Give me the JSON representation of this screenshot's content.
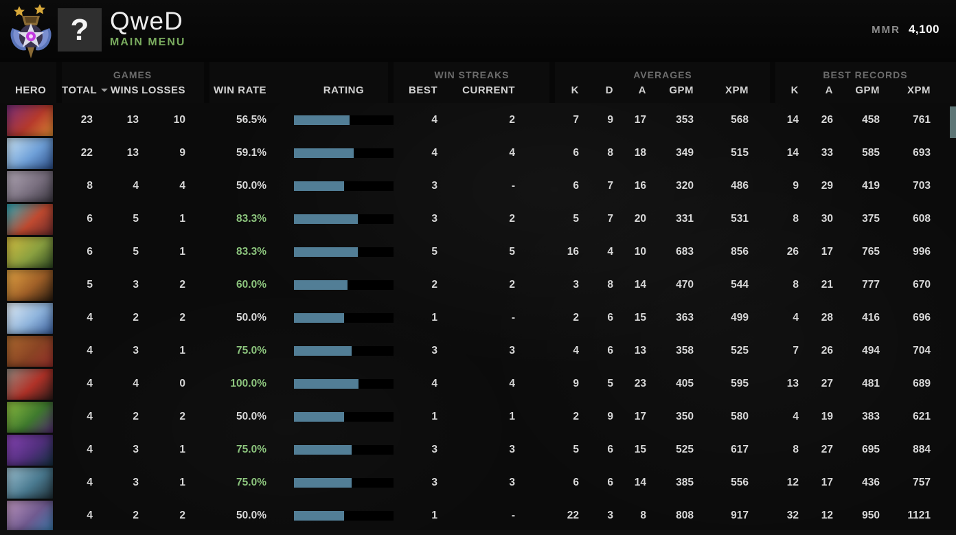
{
  "topbar": {
    "player_name": "QweD",
    "nav_label": "MAIN MENU",
    "nav_color": "#79ab5e",
    "avatar_glyph": "?",
    "mmr_label": "MMR",
    "mmr_value": "4,100",
    "rank_medal_icon": "immortal-medal-two-stars"
  },
  "table": {
    "groups": {
      "games": "GAMES",
      "win_streaks": "WIN STREAKS",
      "averages": "AVERAGES",
      "best_records": "BEST RECORDS"
    },
    "columns": {
      "hero": "HERO",
      "total": "TOTAL",
      "wins": "WINS",
      "losses": "LOSSES",
      "win_rate": "WIN RATE",
      "rating": "RATING",
      "best": "BEST",
      "current": "CURRENT",
      "avg_k": "K",
      "avg_d": "D",
      "avg_a": "A",
      "avg_gpm": "GPM",
      "avg_xpm": "XPM",
      "rec_k": "K",
      "rec_a": "A",
      "rec_gpm": "GPM",
      "rec_xpm": "XPM"
    },
    "colors": {
      "bar_fill": "#527e96",
      "bar_track": "#000000",
      "win_green": "#8cc47d",
      "text": "#d8d8d8"
    },
    "green_threshold_pct": 60,
    "rows": [
      {
        "total": "23",
        "wins": "13",
        "losses": "10",
        "win_rate": "56.5%",
        "rating_pct": 56,
        "streak_best": "4",
        "streak_current": "2",
        "avg_k": "7",
        "avg_d": "9",
        "avg_a": "17",
        "avg_gpm": "353",
        "avg_xpm": "568",
        "rec_k": "14",
        "rec_a": "26",
        "rec_gpm": "458",
        "rec_xpm": "761",
        "portrait": [
          "#7b2f7d",
          "#b63a2c",
          "#df8c33"
        ]
      },
      {
        "total": "22",
        "wins": "13",
        "losses": "9",
        "win_rate": "59.1%",
        "rating_pct": 60,
        "streak_best": "4",
        "streak_current": "4",
        "avg_k": "6",
        "avg_d": "8",
        "avg_a": "18",
        "avg_gpm": "349",
        "avg_xpm": "515",
        "rec_k": "14",
        "rec_a": "33",
        "rec_gpm": "585",
        "rec_xpm": "693",
        "portrait": [
          "#cfe8f8",
          "#6fa0d8",
          "#2c4f8a"
        ]
      },
      {
        "total": "8",
        "wins": "4",
        "losses": "4",
        "win_rate": "50.0%",
        "rating_pct": 50,
        "streak_best": "3",
        "streak_current": "-",
        "avg_k": "6",
        "avg_d": "7",
        "avg_a": "16",
        "avg_gpm": "320",
        "avg_xpm": "486",
        "rec_k": "9",
        "rec_a": "29",
        "rec_gpm": "419",
        "rec_xpm": "703",
        "portrait": [
          "#b4aab8",
          "#7a7080",
          "#3c3842"
        ]
      },
      {
        "total": "6",
        "wins": "5",
        "losses": "1",
        "win_rate": "83.3%",
        "rating_pct": 64,
        "streak_best": "3",
        "streak_current": "2",
        "avg_k": "5",
        "avg_d": "7",
        "avg_a": "20",
        "avg_gpm": "331",
        "avg_xpm": "531",
        "rec_k": "8",
        "rec_a": "30",
        "rec_gpm": "375",
        "rec_xpm": "608",
        "portrait": [
          "#2fb0c0",
          "#c04a30",
          "#6a2a2a"
        ]
      },
      {
        "total": "6",
        "wins": "5",
        "losses": "1",
        "win_rate": "83.3%",
        "rating_pct": 64,
        "streak_best": "5",
        "streak_current": "5",
        "avg_k": "16",
        "avg_d": "4",
        "avg_a": "10",
        "avg_gpm": "683",
        "avg_xpm": "856",
        "rec_k": "26",
        "rec_a": "17",
        "rec_gpm": "765",
        "rec_xpm": "996",
        "portrait": [
          "#d8c040",
          "#8aa040",
          "#2f4a22"
        ]
      },
      {
        "total": "5",
        "wins": "3",
        "losses": "2",
        "win_rate": "60.0%",
        "rating_pct": 54,
        "streak_best": "2",
        "streak_current": "2",
        "avg_k": "3",
        "avg_d": "8",
        "avg_a": "14",
        "avg_gpm": "470",
        "avg_xpm": "544",
        "rec_k": "8",
        "rec_a": "21",
        "rec_gpm": "777",
        "rec_xpm": "670",
        "portrait": [
          "#e8a845",
          "#a06028",
          "#2a1c10"
        ]
      },
      {
        "total": "4",
        "wins": "2",
        "losses": "2",
        "win_rate": "50.0%",
        "rating_pct": 50,
        "streak_best": "1",
        "streak_current": "-",
        "avg_k": "2",
        "avg_d": "6",
        "avg_a": "15",
        "avg_gpm": "363",
        "avg_xpm": "499",
        "rec_k": "4",
        "rec_a": "28",
        "rec_gpm": "416",
        "rec_xpm": "696",
        "portrait": [
          "#e8f2fa",
          "#8fb4dc",
          "#3c62a0"
        ]
      },
      {
        "total": "4",
        "wins": "3",
        "losses": "1",
        "win_rate": "75.0%",
        "rating_pct": 58,
        "streak_best": "3",
        "streak_current": "3",
        "avg_k": "4",
        "avg_d": "6",
        "avg_a": "13",
        "avg_gpm": "358",
        "avg_xpm": "525",
        "rec_k": "7",
        "rec_a": "26",
        "rec_gpm": "494",
        "rec_xpm": "704",
        "portrait": [
          "#b06c30",
          "#8a4424",
          "#962f2a"
        ]
      },
      {
        "total": "4",
        "wins": "4",
        "losses": "0",
        "win_rate": "100.0%",
        "rating_pct": 65,
        "streak_best": "4",
        "streak_current": "4",
        "avg_k": "9",
        "avg_d": "5",
        "avg_a": "23",
        "avg_gpm": "405",
        "avg_xpm": "595",
        "rec_k": "13",
        "rec_a": "27",
        "rec_gpm": "481",
        "rec_xpm": "689",
        "portrait": [
          "#9a8f85",
          "#b03228",
          "#2e1c1a"
        ]
      },
      {
        "total": "4",
        "wins": "2",
        "losses": "2",
        "win_rate": "50.0%",
        "rating_pct": 50,
        "streak_best": "1",
        "streak_current": "1",
        "avg_k": "2",
        "avg_d": "9",
        "avg_a": "17",
        "avg_gpm": "350",
        "avg_xpm": "580",
        "rec_k": "4",
        "rec_a": "19",
        "rec_gpm": "383",
        "rec_xpm": "621",
        "portrait": [
          "#8fc040",
          "#3f7a2e",
          "#522a70"
        ]
      },
      {
        "total": "4",
        "wins": "3",
        "losses": "1",
        "win_rate": "75.0%",
        "rating_pct": 58,
        "streak_best": "3",
        "streak_current": "3",
        "avg_k": "5",
        "avg_d": "6",
        "avg_a": "15",
        "avg_gpm": "525",
        "avg_xpm": "617",
        "rec_k": "8",
        "rec_a": "27",
        "rec_gpm": "695",
        "rec_xpm": "884",
        "portrait": [
          "#8a45b8",
          "#52307e",
          "#143040"
        ]
      },
      {
        "total": "4",
        "wins": "3",
        "losses": "1",
        "win_rate": "75.0%",
        "rating_pct": 58,
        "streak_best": "3",
        "streak_current": "3",
        "avg_k": "6",
        "avg_d": "6",
        "avg_a": "14",
        "avg_gpm": "385",
        "avg_xpm": "556",
        "rec_k": "12",
        "rec_a": "17",
        "rec_gpm": "436",
        "rec_xpm": "757",
        "portrait": [
          "#a0c4d4",
          "#4a7a90",
          "#203038"
        ]
      },
      {
        "total": "4",
        "wins": "2",
        "losses": "2",
        "win_rate": "50.0%",
        "rating_pct": 50,
        "streak_best": "1",
        "streak_current": "-",
        "avg_k": "22",
        "avg_d": "3",
        "avg_a": "8",
        "avg_gpm": "808",
        "avg_xpm": "917",
        "rec_k": "32",
        "rec_a": "12",
        "rec_gpm": "950",
        "rec_xpm": "1121",
        "portrait": [
          "#c098c0",
          "#705a90",
          "#3878a8"
        ]
      }
    ]
  }
}
